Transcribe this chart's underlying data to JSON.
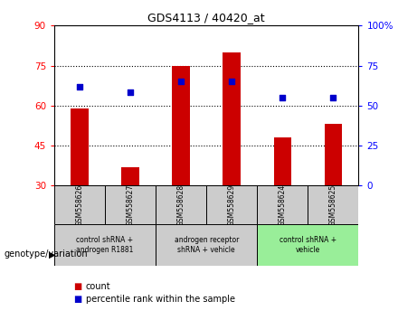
{
  "title": "GDS4113 / 40420_at",
  "samples": [
    "GSM558626",
    "GSM558627",
    "GSM558628",
    "GSM558629",
    "GSM558624",
    "GSM558625"
  ],
  "bar_values": [
    59,
    37,
    75,
    80,
    48,
    53
  ],
  "dot_values": [
    67,
    65,
    69,
    69,
    63,
    63
  ],
  "bar_bottom": 30,
  "ylim_left": [
    30,
    90
  ],
  "ylim_right": [
    0,
    100
  ],
  "yticks_left": [
    30,
    45,
    60,
    75,
    90
  ],
  "yticks_right": [
    0,
    25,
    50,
    75,
    100
  ],
  "ytick_labels_right": [
    "0",
    "25",
    "50",
    "75",
    "100%"
  ],
  "bar_color": "#cc0000",
  "dot_color": "#0000cc",
  "bg_color": "#ffffff",
  "plot_bg": "#ffffff",
  "sample_box_color": "#cccccc",
  "group_colors": [
    "#cccccc",
    "#cccccc",
    "#99ee99"
  ],
  "group_labels": [
    "control shRNA +\nandrogen R1881",
    "androgen receptor\nshRNA + vehicle",
    "control shRNA +\nvehicle"
  ],
  "group_ranges": [
    [
      0,
      1
    ],
    [
      2,
      3
    ],
    [
      4,
      5
    ]
  ],
  "legend_count_label": "count",
  "legend_pct_label": "percentile rank within the sample",
  "genotype_label": "genotype/variation"
}
